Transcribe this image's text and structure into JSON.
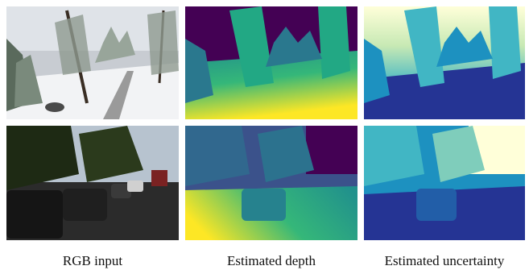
{
  "figure": {
    "columns": [
      {
        "label": "RGB input"
      },
      {
        "label": "Estimated depth"
      },
      {
        "label": "Estimated uncertainty"
      }
    ],
    "rows": [
      {
        "scene": "snowy-forest-railway"
      },
      {
        "scene": "street-with-parked-cars"
      }
    ],
    "colormap": [
      "#440154",
      "#31688e",
      "#21918c",
      "#35b779",
      "#fde725"
    ],
    "uncertainty_colormap": [
      "#ffffd9",
      "#c7e9b4",
      "#41b6c4",
      "#225ea8",
      "#081d58"
    ]
  }
}
